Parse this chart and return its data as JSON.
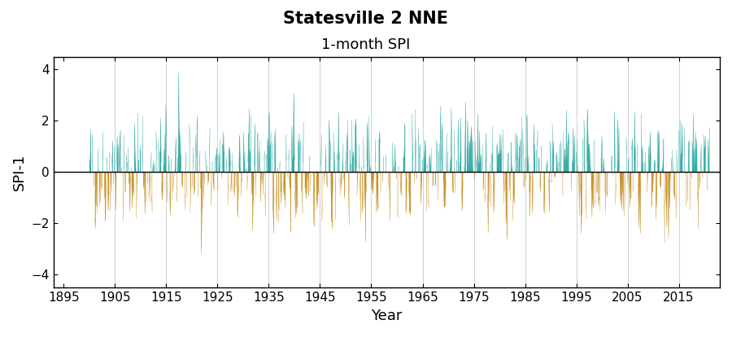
{
  "title": "Statesville 2 NNE",
  "subtitle": "1-month SPI",
  "xlabel": "Year",
  "ylabel": "SPI-1",
  "ylim": [
    -4.5,
    4.5
  ],
  "yticks": [
    -4,
    -2,
    0,
    2,
    4
  ],
  "xlim": [
    1893,
    2023
  ],
  "xticks": [
    1895,
    1905,
    1915,
    1925,
    1935,
    1945,
    1955,
    1965,
    1975,
    1985,
    1995,
    2005,
    2015
  ],
  "data_start_year": 1900,
  "data_end_year": 2021,
  "color_positive": "#3aada8",
  "color_negative": "#c8932a",
  "title_fontsize": 15,
  "subtitle_fontsize": 13,
  "label_fontsize": 13,
  "tick_fontsize": 11,
  "seed": 42
}
